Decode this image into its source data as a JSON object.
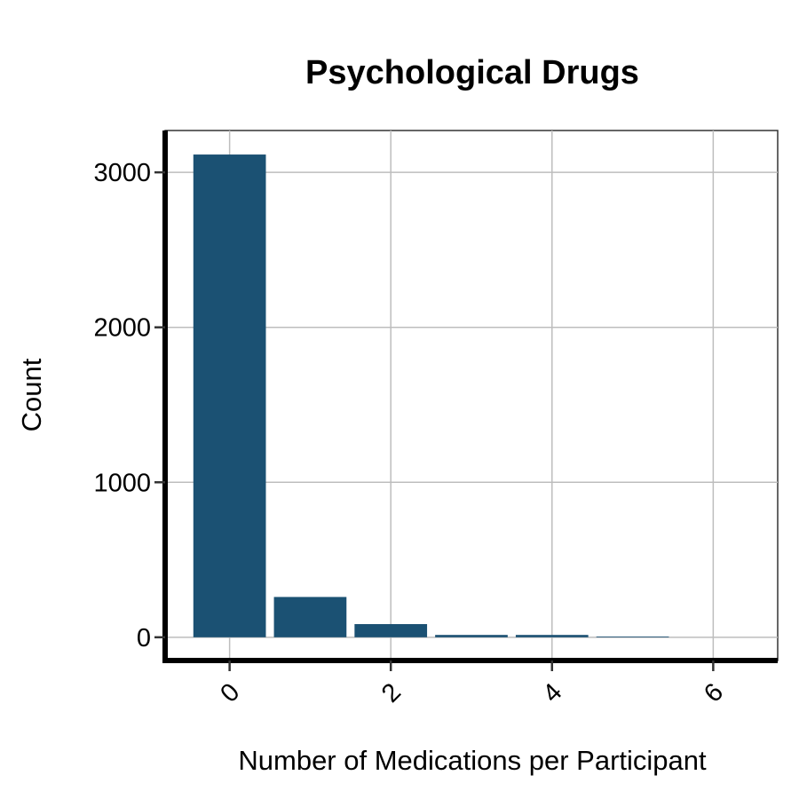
{
  "chart_data": {
    "type": "bar",
    "title": "Psychological Drugs",
    "xlabel": "Number of Medications per Participant",
    "ylabel": "Count",
    "x": [
      0,
      1,
      2,
      3,
      4,
      5,
      6
    ],
    "values": [
      3115,
      260,
      85,
      15,
      15,
      5,
      0
    ],
    "xticks": [
      "0",
      "2",
      "4",
      "6"
    ],
    "yticks": [
      "0",
      "1000",
      "2000",
      "3000"
    ],
    "xlim": [
      -0.8,
      6.8
    ],
    "ylim": [
      -150,
      3270
    ],
    "grid": true,
    "bar_color": "#1b5173"
  }
}
